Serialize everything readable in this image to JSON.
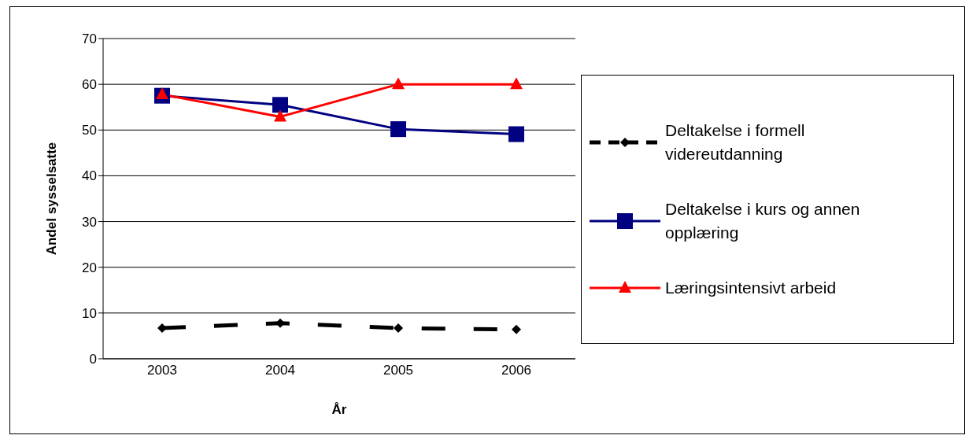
{
  "chart_data": {
    "type": "line",
    "xlabel": "År",
    "ylabel": "Andel sysselsatte",
    "categories": [
      "2003",
      "2004",
      "2005",
      "2006"
    ],
    "series": [
      {
        "name": "Deltakelse i formell videreutdanning",
        "color": "#000000",
        "marker": "diamond",
        "line_style": "dashed",
        "values": [
          6.7,
          7.8,
          6.7,
          6.4
        ]
      },
      {
        "name": "Deltakelse i kurs og annen opplæring",
        "color": "#000080",
        "marker": "square",
        "line_style": "solid",
        "values": [
          57.5,
          55.5,
          50.2,
          49.1
        ]
      },
      {
        "name": "Læringsintensivt arbeid",
        "color": "#ff0000",
        "marker": "triangle",
        "line_style": "solid",
        "values": [
          57.8,
          52.9,
          60,
          60
        ]
      }
    ],
    "ylim": [
      0,
      70
    ],
    "yticks": [
      0,
      10,
      20,
      30,
      40,
      50,
      60,
      70
    ],
    "grid": "y",
    "legend": "right"
  }
}
